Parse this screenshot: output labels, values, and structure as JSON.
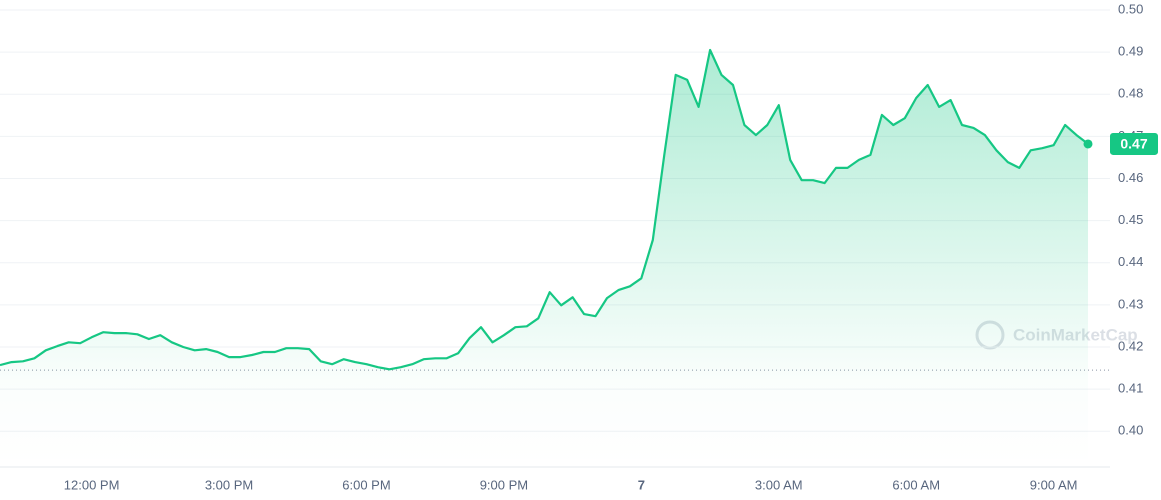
{
  "chart_data": {
    "type": "line",
    "categories": [
      null,
      null,
      null,
      null,
      null,
      null,
      null,
      null,
      "12:00 PM",
      null,
      null,
      null,
      null,
      null,
      null,
      null,
      null,
      null,
      null,
      null,
      "3:00 PM",
      null,
      null,
      null,
      null,
      null,
      null,
      null,
      null,
      null,
      null,
      null,
      "6:00 PM",
      null,
      null,
      null,
      null,
      null,
      null,
      null,
      null,
      null,
      null,
      null,
      "9:00 PM",
      null,
      null,
      null,
      null,
      null,
      null,
      null,
      null,
      null,
      null,
      null,
      "7",
      null,
      null,
      null,
      null,
      null,
      null,
      null,
      null,
      null,
      null,
      null,
      "3:00 AM",
      null,
      null,
      null,
      null,
      null,
      null,
      null,
      null,
      null,
      null,
      null,
      "6:00 AM",
      null,
      null,
      null,
      null,
      null,
      null,
      null,
      null,
      null,
      null,
      null,
      "9:00 AM",
      null,
      null,
      null
    ],
    "series": [
      {
        "color": "#16c784",
        "values": [
          0.4157,
          0.4164,
          0.4166,
          0.4173,
          0.4192,
          0.4202,
          0.4211,
          0.4209,
          0.4223,
          0.4235,
          0.4233,
          0.4233,
          0.423,
          0.4219,
          0.4228,
          0.4211,
          0.42,
          0.4192,
          0.4195,
          0.4188,
          0.4176,
          0.4176,
          0.4181,
          0.4188,
          0.4188,
          0.4197,
          0.4197,
          0.4195,
          0.4166,
          0.4159,
          0.4171,
          0.4164,
          0.4159,
          0.4152,
          0.4147,
          0.4152,
          0.4159,
          0.4171,
          0.4173,
          0.4173,
          0.4185,
          0.4221,
          0.4247,
          0.4211,
          0.4228,
          0.4247,
          0.4249,
          0.4268,
          0.433,
          0.4299,
          0.4318,
          0.4278,
          0.4273,
          0.4316,
          0.4335,
          0.4344,
          0.4363,
          0.4454,
          0.4656,
          0.4846,
          0.4834,
          0.477,
          0.4905,
          0.4846,
          0.4822,
          0.4727,
          0.4703,
          0.4727,
          0.4774,
          0.4644,
          0.4596,
          0.4596,
          0.4589,
          0.4625,
          0.4625,
          0.4644,
          0.4656,
          0.4751,
          0.4727,
          0.4743,
          0.4791,
          0.4822,
          0.477,
          0.4786,
          0.4727,
          0.472,
          0.4703,
          0.4667,
          0.4639,
          0.4625,
          0.4667,
          0.4672,
          0.4679,
          0.4727,
          0.4703,
          0.4682
        ]
      }
    ],
    "current_label": "0.47",
    "reference_value": 0.4145,
    "ylim": [
      0.3915,
      0.5
    ],
    "yticks": [
      {
        "value": 0.4,
        "label": "0.40"
      },
      0.41,
      0.42,
      0.43,
      0.44,
      0.45,
      0.46,
      0.47,
      0.48,
      0.49,
      {
        "value": 0.5,
        "label": "0.50"
      }
    ],
    "grid": true,
    "watermark": "CoinMarketCap"
  }
}
